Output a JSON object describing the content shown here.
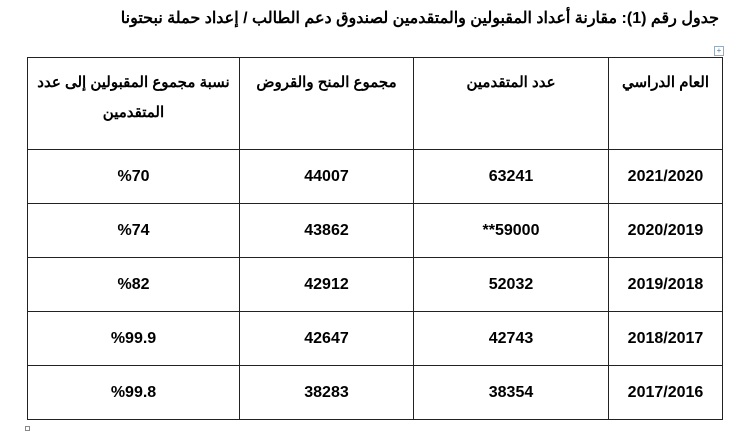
{
  "title": "جدول رقم (1): مقارنة أعداد المقبولين والمتقدمين لصندوق دعم الطالب / إعداد حملة نبحتونا",
  "headers": [
    "العام الدراسي",
    "عدد المتقدمين",
    "مجموع المنح والقروض",
    "نسبة مجموع المقبولين إلى عدد المتقدمين"
  ],
  "rows": [
    [
      "2021/2020",
      "63241",
      "44007",
      "%70"
    ],
    [
      "2020/2019",
      "**59000",
      "43862",
      "%74"
    ],
    [
      "2019/2018",
      "52032",
      "42912",
      "%82"
    ],
    [
      "2018/2017",
      "42743",
      "42647",
      "%99.9"
    ],
    [
      "2017/2016",
      "38354",
      "38283",
      "%99.8"
    ]
  ]
}
